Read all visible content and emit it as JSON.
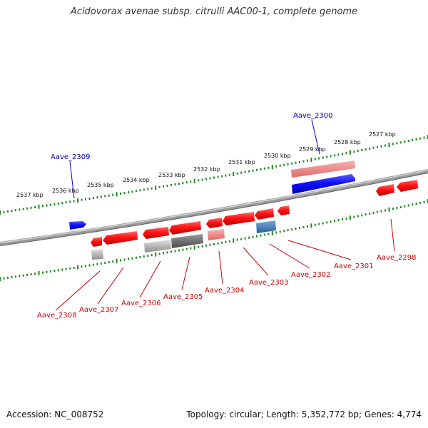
{
  "title": "Acidovorax avenae subsp. citrulli AAC00-1, complete genome",
  "footer": {
    "accession": "Accession: NC_008752",
    "summary": "Topology: circular; Length: 5,352,772 bp; Genes: 4,774"
  },
  "colors": {
    "forward": "#e00000",
    "reverse": "#0000ee",
    "ruler": "#1a8a1a",
    "backbone": "#888888"
  },
  "ruler_labels": [
    "2537 kbp",
    "2536 kbp",
    "2535 kbp",
    "2534 kbp",
    "2533 kbp",
    "2532 kbp",
    "2531 kbp",
    "2530 kbp",
    "2529 kbp",
    "2528 kbp",
    "2527 kbp"
  ],
  "genes": [
    {
      "id": "Aave_2309",
      "label": "Aave_2309",
      "strand": "reverse",
      "color": "#0000ee"
    },
    {
      "id": "Aave_2300",
      "label": "Aave_2300",
      "strand": "reverse",
      "color": "#0000ee"
    },
    {
      "id": "Aave_2308",
      "label": "Aave_2308",
      "strand": "forward",
      "color": "#e00000"
    },
    {
      "id": "Aave_2307",
      "label": "Aave_2307",
      "strand": "forward",
      "color": "#e00000"
    },
    {
      "id": "Aave_2306",
      "label": "Aave_2306",
      "strand": "forward",
      "color": "#e00000"
    },
    {
      "id": "Aave_2305",
      "label": "Aave_2305",
      "strand": "forward",
      "color": "#e00000"
    },
    {
      "id": "Aave_2304",
      "label": "Aave_2304",
      "strand": "forward",
      "color": "#e00000"
    },
    {
      "id": "Aave_2303",
      "label": "Aave_2303",
      "strand": "forward",
      "color": "#e00000"
    },
    {
      "id": "Aave_2302",
      "label": "Aave_2302",
      "strand": "forward",
      "color": "#e00000"
    },
    {
      "id": "Aave_2301",
      "label": "Aave_2301",
      "strand": "forward",
      "color": "#e00000"
    },
    {
      "id": "Aave_2298",
      "label": "Aave_2298",
      "strand": "forward",
      "color": "#e00000"
    }
  ]
}
